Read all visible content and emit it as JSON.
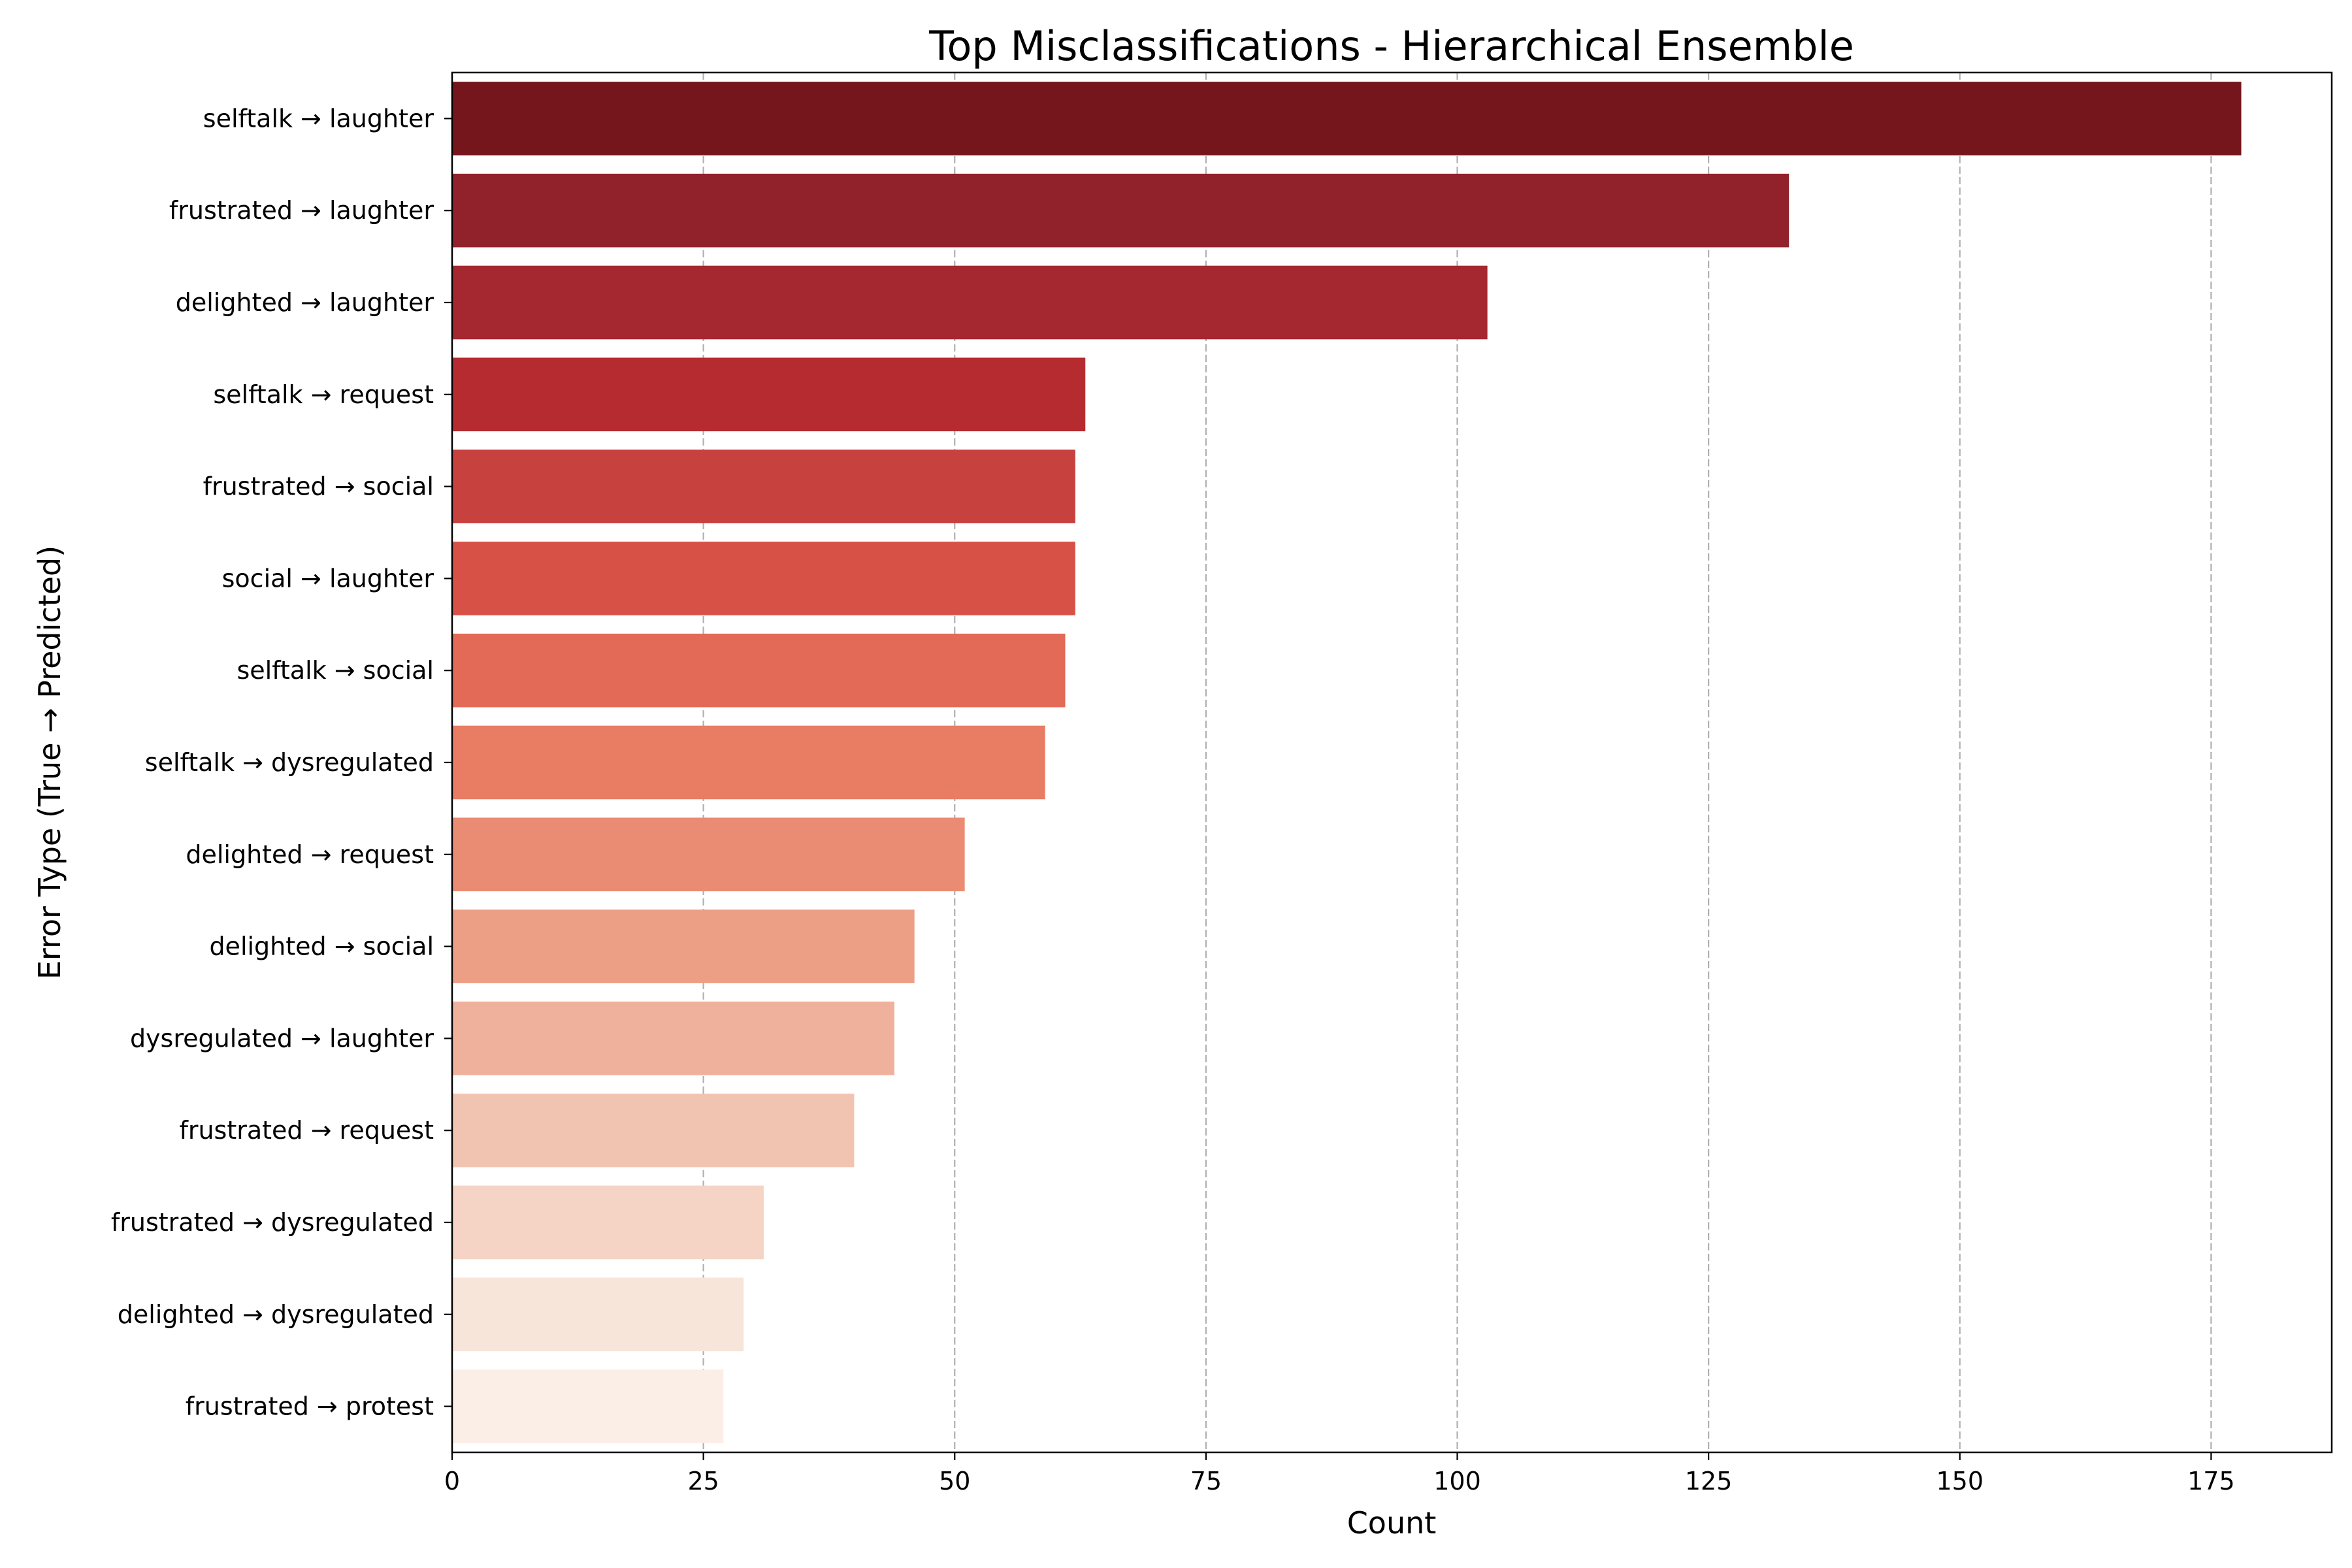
{
  "chart_data": {
    "type": "bar",
    "orientation": "horizontal",
    "title": "Top Misclassifications - Hierarchical Ensemble",
    "xlabel": "Count",
    "ylabel": "Error Type (True → Predicted)",
    "categories": [
      "selftalk → laughter",
      "frustrated → laughter",
      "delighted → laughter",
      "selftalk → request",
      "frustrated → social",
      "social → laughter",
      "selftalk → social",
      "selftalk → dysregulated",
      "delighted → request",
      "delighted → social",
      "dysregulated → laughter",
      "frustrated → request",
      "frustrated → dysregulated",
      "delighted → dysregulated",
      "frustrated → protest"
    ],
    "values": [
      178,
      133,
      103,
      63,
      62,
      62,
      61,
      59,
      51,
      46,
      44,
      40,
      31,
      29,
      27
    ],
    "colors": [
      "#75161c",
      "#91212a",
      "#a52830",
      "#b52b30",
      "#c7413e",
      "#d85147",
      "#e26a56",
      "#e87d64",
      "#ea8c74",
      "#ed9f86",
      "#efb19c",
      "#f1c4b2",
      "#f5d3c5",
      "#f8e5da",
      "#fbeee7"
    ],
    "xlim": [
      0,
      187
    ],
    "xticks": [
      0,
      25,
      50,
      75,
      100,
      125,
      150,
      175
    ],
    "grid": "vertical-dashed"
  }
}
